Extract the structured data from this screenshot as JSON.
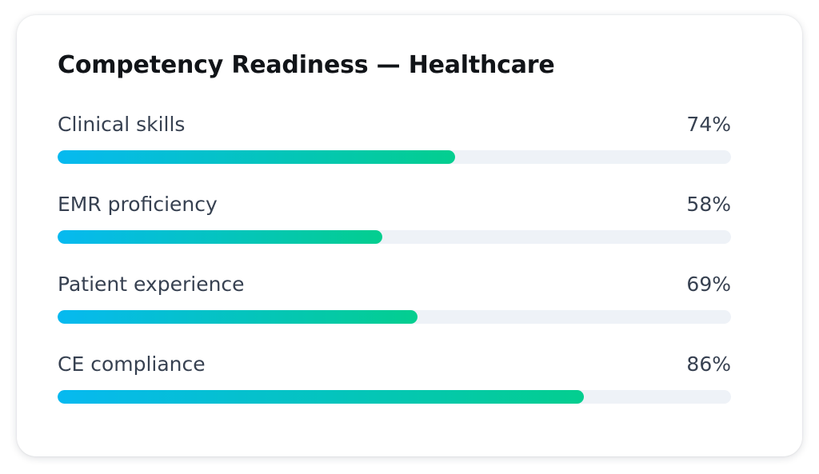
{
  "card": {
    "title": "Competency Readiness — Healthcare",
    "metrics": [
      {
        "label": "Clinical skills",
        "value_text": "74%",
        "fill_fraction": 0.59
      },
      {
        "label": "EMR proficiency",
        "value_text": "58%",
        "fill_fraction": 0.482
      },
      {
        "label": "Patient experience",
        "value_text": "69%",
        "fill_fraction": 0.534
      },
      {
        "label": "CE compliance",
        "value_text": "86%",
        "fill_fraction": 0.782
      }
    ]
  },
  "colors": {
    "title": "#111418",
    "text": "#374151",
    "track": "#eef2f7",
    "gradient_start": "#06b9f0",
    "gradient_end": "#03ce8f",
    "card_background": "#ffffff"
  }
}
